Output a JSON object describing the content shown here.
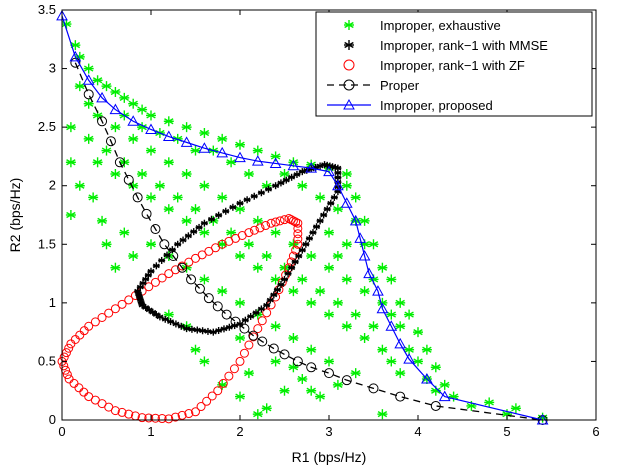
{
  "chart_data": {
    "type": "scatter",
    "xlabel": "R1 (bps/Hz)",
    "ylabel": "R2 (bps/Hz)",
    "xlim": [
      0,
      6
    ],
    "ylim": [
      0,
      3.5
    ],
    "xticks": [
      "0",
      "1",
      "2",
      "3",
      "4",
      "5",
      "6"
    ],
    "yticks": [
      "0",
      "0.5",
      "1",
      "1.5",
      "2",
      "2.5",
      "3",
      "3.5"
    ],
    "grid": false,
    "legend_position": "top-right",
    "colors": {
      "exhaustive": "#00ee00",
      "mmse": "#000000",
      "zf": "#ff0000",
      "proper": "#000000",
      "proposed": "#0000ff"
    },
    "series": [
      {
        "name": "Improper, exhaustive",
        "marker": "asterisk",
        "points": [
          [
            0.05,
            3.38
          ],
          [
            0.15,
            3.2
          ],
          [
            0.2,
            3.1
          ],
          [
            0.3,
            3.0
          ],
          [
            0.4,
            2.9
          ],
          [
            0.5,
            2.85
          ],
          [
            0.6,
            2.8
          ],
          [
            0.7,
            2.75
          ],
          [
            0.8,
            2.7
          ],
          [
            0.9,
            2.65
          ],
          [
            1.0,
            2.6
          ],
          [
            1.2,
            2.55
          ],
          [
            1.4,
            2.5
          ],
          [
            1.6,
            2.45
          ],
          [
            1.8,
            2.4
          ],
          [
            2.0,
            2.35
          ],
          [
            2.2,
            2.3
          ],
          [
            2.4,
            2.25
          ],
          [
            2.6,
            2.2
          ],
          [
            2.8,
            2.18
          ],
          [
            3.0,
            2.15
          ],
          [
            3.2,
            2.1
          ],
          [
            3.3,
            1.9
          ],
          [
            3.4,
            1.7
          ],
          [
            3.5,
            1.5
          ],
          [
            3.6,
            1.3
          ],
          [
            3.7,
            1.2
          ],
          [
            3.8,
            1.0
          ],
          [
            3.9,
            0.9
          ],
          [
            4.0,
            0.75
          ],
          [
            4.1,
            0.6
          ],
          [
            4.2,
            0.45
          ],
          [
            4.3,
            0.3
          ],
          [
            4.4,
            0.2
          ],
          [
            4.6,
            0.12
          ],
          [
            5.0,
            0.05
          ],
          [
            5.4,
            0.02
          ],
          [
            5.1,
            0.1
          ],
          [
            4.8,
            0.15
          ],
          [
            3.6,
            0.05
          ],
          [
            0.1,
            2.5
          ],
          [
            0.1,
            2.2
          ],
          [
            0.2,
            2.0
          ],
          [
            0.1,
            1.75
          ],
          [
            0.3,
            2.4
          ],
          [
            0.4,
            2.2
          ],
          [
            0.5,
            2.3
          ],
          [
            0.6,
            2.1
          ],
          [
            0.7,
            2.2
          ],
          [
            0.8,
            2.0
          ],
          [
            0.9,
            2.1
          ],
          [
            1.0,
            1.9
          ],
          [
            1.1,
            2.0
          ],
          [
            1.2,
            1.8
          ],
          [
            1.3,
            1.9
          ],
          [
            1.4,
            1.7
          ],
          [
            1.5,
            1.8
          ],
          [
            1.6,
            1.6
          ],
          [
            1.7,
            1.7
          ],
          [
            1.8,
            1.5
          ],
          [
            1.9,
            1.6
          ],
          [
            2.0,
            1.4
          ],
          [
            2.1,
            1.5
          ],
          [
            2.2,
            1.3
          ],
          [
            2.3,
            1.4
          ],
          [
            2.4,
            1.2
          ],
          [
            2.5,
            1.3
          ],
          [
            2.6,
            1.1
          ],
          [
            2.7,
            1.2
          ],
          [
            2.8,
            1.0
          ],
          [
            2.9,
            1.1
          ],
          [
            3.0,
            0.9
          ],
          [
            3.1,
            1.0
          ],
          [
            3.2,
            0.8
          ],
          [
            3.3,
            0.9
          ],
          [
            3.4,
            0.7
          ],
          [
            3.5,
            0.8
          ],
          [
            3.6,
            0.6
          ],
          [
            3.7,
            0.5
          ],
          [
            3.8,
            0.4
          ],
          [
            0.4,
            2.6
          ],
          [
            0.6,
            2.5
          ],
          [
            0.8,
            2.4
          ],
          [
            1.0,
            2.3
          ],
          [
            1.2,
            2.2
          ],
          [
            1.4,
            2.1
          ],
          [
            1.6,
            2.0
          ],
          [
            1.8,
            1.9
          ],
          [
            2.0,
            1.8
          ],
          [
            2.2,
            1.7
          ],
          [
            2.4,
            1.6
          ],
          [
            2.6,
            1.5
          ],
          [
            2.8,
            1.4
          ],
          [
            3.0,
            1.3
          ],
          [
            3.2,
            1.2
          ],
          [
            3.4,
            1.1
          ],
          [
            3.6,
            1.0
          ],
          [
            0.5,
            1.5
          ],
          [
            0.6,
            1.3
          ],
          [
            0.7,
            1.6
          ],
          [
            0.8,
            1.4
          ],
          [
            1.0,
            1.5
          ],
          [
            1.2,
            1.4
          ],
          [
            1.4,
            1.3
          ],
          [
            1.6,
            1.2
          ],
          [
            1.8,
            1.1
          ],
          [
            2.0,
            1.0
          ],
          [
            2.2,
            0.9
          ],
          [
            2.4,
            0.8
          ],
          [
            2.6,
            0.7
          ],
          [
            2.8,
            0.6
          ],
          [
            3.0,
            0.5
          ],
          [
            1.5,
            0.6
          ],
          [
            1.8,
            0.3
          ],
          [
            2.0,
            0.2
          ],
          [
            2.3,
            0.1
          ],
          [
            2.2,
            0.05
          ],
          [
            2.5,
            0.25
          ],
          [
            2.7,
            0.35
          ],
          [
            2.9,
            0.2
          ],
          [
            3.1,
            0.3
          ],
          [
            3.3,
            0.4
          ],
          [
            1.2,
            0.9
          ],
          [
            1.4,
            0.8
          ],
          [
            1.6,
            0.5
          ],
          [
            3.2,
            2.0
          ],
          [
            3.1,
            1.8
          ],
          [
            3.0,
            1.6
          ],
          [
            2.9,
            1.9
          ],
          [
            2.7,
            2.0
          ],
          [
            2.5,
            2.1
          ],
          [
            2.3,
            2.0
          ],
          [
            2.1,
            2.1
          ],
          [
            1.9,
            2.2
          ],
          [
            1.7,
            2.3
          ],
          [
            1.5,
            2.3
          ],
          [
            1.3,
            2.4
          ],
          [
            1.1,
            2.45
          ],
          [
            0.9,
            2.5
          ],
          [
            0.7,
            2.6
          ],
          [
            0.3,
            2.7
          ],
          [
            0.2,
            2.85
          ],
          [
            0.35,
            1.9
          ],
          [
            0.45,
            1.7
          ],
          [
            3.8,
            0.8
          ],
          [
            3.9,
            0.6
          ],
          [
            4.0,
            0.5
          ],
          [
            4.1,
            0.35
          ],
          [
            3.5,
            1.2
          ],
          [
            3.7,
            0.9
          ],
          [
            4.2,
            0.25
          ],
          [
            3.4,
            1.5
          ],
          [
            3.3,
            1.7
          ],
          [
            3.2,
            1.5
          ],
          [
            3.1,
            1.4
          ],
          [
            2.0,
            0.7
          ],
          [
            2.1,
            0.4
          ],
          [
            2.4,
            0.5
          ],
          [
            2.6,
            0.45
          ],
          [
            2.8,
            0.25
          ]
        ]
      },
      {
        "name": "Improper, rank−1 with MMSE",
        "marker": "asterisk",
        "loop": {
          "rx_mode": "upper",
          "cx": 1.95,
          "cy": 1.45,
          "description": "tilted closed loop"
        }
      },
      {
        "name": "Improper, rank−1 with ZF",
        "marker": "circle",
        "loop": {
          "description": "tilted closed loop"
        }
      },
      {
        "name": "Proper",
        "marker": "circle-dashed",
        "points": [
          [
            0.15,
            3.05
          ],
          [
            0.3,
            2.78
          ],
          [
            0.45,
            2.55
          ],
          [
            0.55,
            2.38
          ],
          [
            0.65,
            2.2
          ],
          [
            0.75,
            2.05
          ],
          [
            0.85,
            1.9
          ],
          [
            0.95,
            1.76
          ],
          [
            1.05,
            1.63
          ],
          [
            1.15,
            1.5
          ],
          [
            1.25,
            1.4
          ],
          [
            1.35,
            1.3
          ],
          [
            1.45,
            1.2
          ],
          [
            1.55,
            1.12
          ],
          [
            1.65,
            1.04
          ],
          [
            1.75,
            0.97
          ],
          [
            1.85,
            0.9
          ],
          [
            1.95,
            0.84
          ],
          [
            2.05,
            0.78
          ],
          [
            2.15,
            0.72
          ],
          [
            2.25,
            0.67
          ],
          [
            2.38,
            0.61
          ],
          [
            2.5,
            0.56
          ],
          [
            2.65,
            0.5
          ],
          [
            2.8,
            0.45
          ],
          [
            3.0,
            0.4
          ],
          [
            3.2,
            0.34
          ],
          [
            3.5,
            0.27
          ],
          [
            3.8,
            0.2
          ],
          [
            4.2,
            0.12
          ],
          [
            5.4,
            0.0
          ]
        ]
      },
      {
        "name": "Improper, proposed",
        "marker": "triangle",
        "points": [
          [
            0.0,
            3.45
          ],
          [
            0.15,
            3.1
          ],
          [
            0.3,
            2.9
          ],
          [
            0.45,
            2.75
          ],
          [
            0.6,
            2.65
          ],
          [
            0.8,
            2.55
          ],
          [
            1.0,
            2.48
          ],
          [
            1.2,
            2.42
          ],
          [
            1.4,
            2.37
          ],
          [
            1.6,
            2.32
          ],
          [
            1.8,
            2.28
          ],
          [
            2.0,
            2.24
          ],
          [
            2.2,
            2.21
          ],
          [
            2.4,
            2.19
          ],
          [
            2.6,
            2.17
          ],
          [
            2.8,
            2.15
          ],
          [
            3.0,
            2.12
          ],
          [
            3.1,
            2.0
          ],
          [
            3.2,
            1.85
          ],
          [
            3.3,
            1.7
          ],
          [
            3.35,
            1.55
          ],
          [
            3.4,
            1.4
          ],
          [
            3.45,
            1.25
          ],
          [
            3.55,
            1.1
          ],
          [
            3.6,
            0.95
          ],
          [
            3.7,
            0.8
          ],
          [
            3.8,
            0.65
          ],
          [
            3.9,
            0.52
          ],
          [
            4.1,
            0.35
          ],
          [
            4.3,
            0.2
          ],
          [
            5.4,
            0.0
          ]
        ]
      }
    ],
    "loops": {
      "mmse": {
        "points": [
          [
            0.85,
            1.1
          ],
          [
            1.0,
            1.27
          ],
          [
            1.3,
            1.5
          ],
          [
            1.6,
            1.68
          ],
          [
            2.0,
            1.85
          ],
          [
            2.4,
            2.0
          ],
          [
            2.7,
            2.12
          ],
          [
            2.95,
            2.18
          ],
          [
            3.1,
            2.15
          ],
          [
            3.1,
            1.95
          ],
          [
            2.9,
            1.7
          ],
          [
            2.7,
            1.45
          ],
          [
            2.5,
            1.2
          ],
          [
            2.3,
            0.98
          ],
          [
            2.0,
            0.82
          ],
          [
            1.7,
            0.75
          ],
          [
            1.4,
            0.78
          ],
          [
            1.1,
            0.88
          ],
          [
            0.9,
            0.98
          ],
          [
            0.85,
            1.1
          ]
        ]
      },
      "zf": {
        "points": [
          [
            0.0,
            0.5
          ],
          [
            0.1,
            0.65
          ],
          [
            0.3,
            0.8
          ],
          [
            0.6,
            0.95
          ],
          [
            0.9,
            1.1
          ],
          [
            1.2,
            1.25
          ],
          [
            1.5,
            1.38
          ],
          [
            1.8,
            1.5
          ],
          [
            2.1,
            1.6
          ],
          [
            2.35,
            1.68
          ],
          [
            2.55,
            1.72
          ],
          [
            2.65,
            1.68
          ],
          [
            2.65,
            1.5
          ],
          [
            2.55,
            1.3
          ],
          [
            2.4,
            1.05
          ],
          [
            2.2,
            0.78
          ],
          [
            2.0,
            0.5
          ],
          [
            1.75,
            0.25
          ],
          [
            1.5,
            0.07
          ],
          [
            1.2,
            0.01
          ],
          [
            0.9,
            0.02
          ],
          [
            0.6,
            0.08
          ],
          [
            0.3,
            0.2
          ],
          [
            0.08,
            0.35
          ],
          [
            0.0,
            0.5
          ]
        ]
      }
    }
  }
}
